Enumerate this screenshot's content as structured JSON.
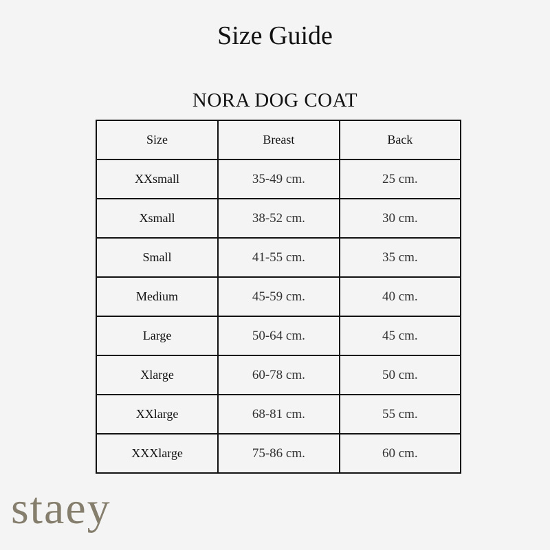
{
  "title": "Size Guide",
  "subtitle": "NORA DOG COAT",
  "table": {
    "headers": [
      "Size",
      "Breast",
      "Back"
    ],
    "rows": [
      [
        "XXsmall",
        "35-49 cm.",
        "25 cm."
      ],
      [
        "Xsmall",
        "38-52 cm.",
        "30 cm."
      ],
      [
        "Small",
        "41-55 cm.",
        "35 cm."
      ],
      [
        "Medium",
        "45-59 cm.",
        "40 cm."
      ],
      [
        "Large",
        "50-64 cm.",
        "45 cm."
      ],
      [
        "Xlarge",
        "60-78 cm.",
        "50 cm."
      ],
      [
        "XXlarge",
        "68-81 cm.",
        "55 cm."
      ],
      [
        "XXXlarge",
        "75-86 cm.",
        "60 cm."
      ]
    ]
  },
  "logo": {
    "text": "staey",
    "color": "#857e6d"
  }
}
